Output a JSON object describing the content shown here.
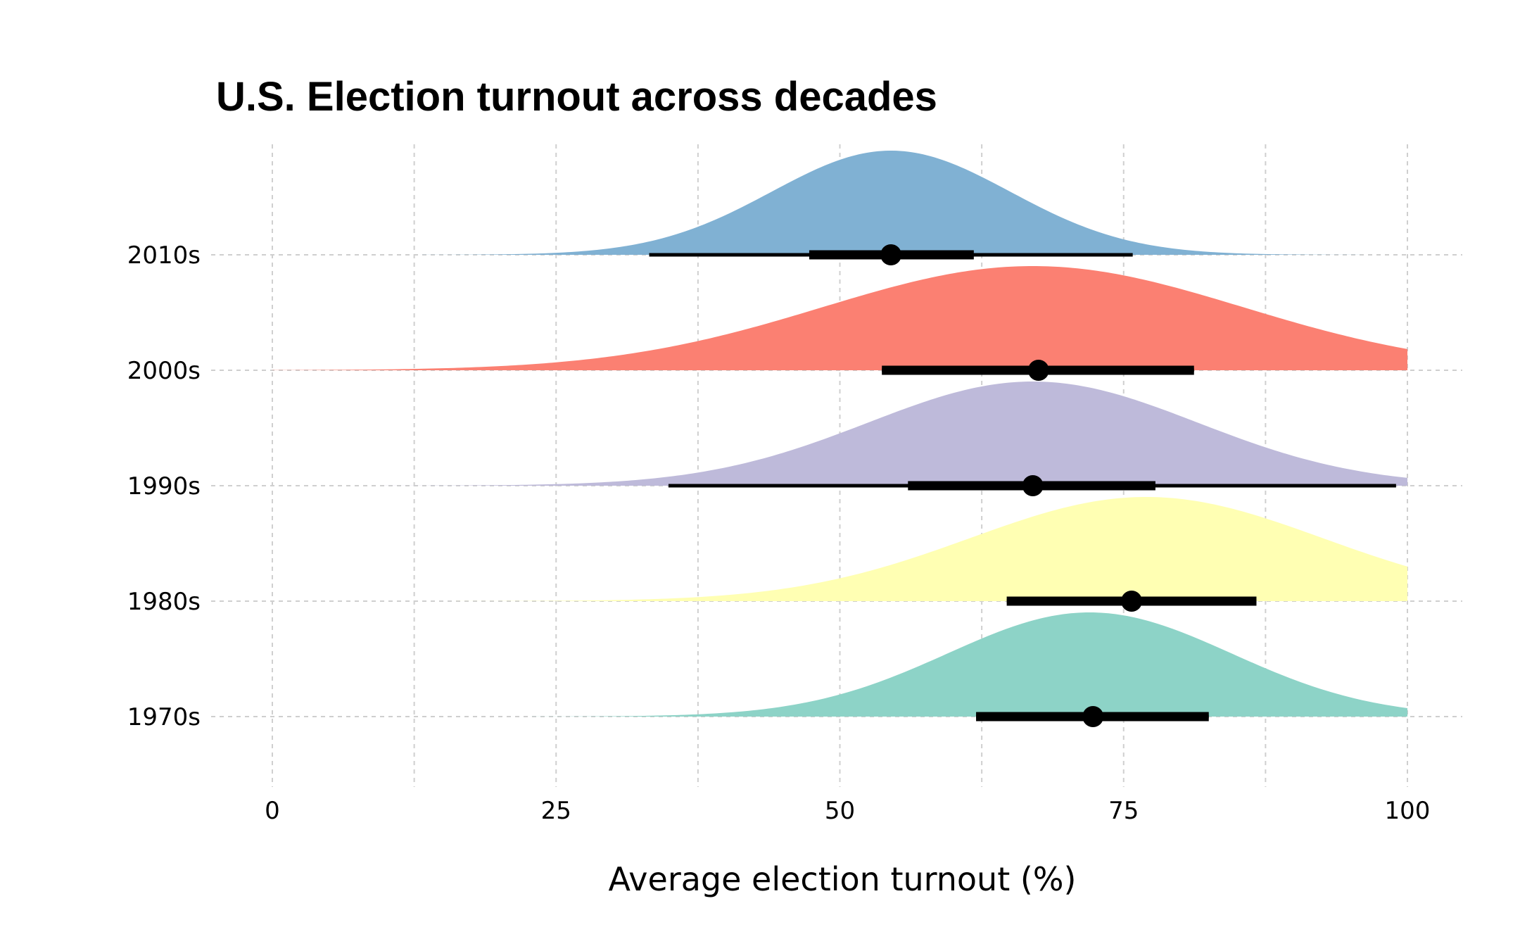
{
  "chart_data": {
    "type": "ridgeline",
    "title": "U.S. Election turnout across decades",
    "xlabel": "Average election turnout (%)",
    "ylabel": "",
    "xlim": [
      0,
      100
    ],
    "xticks": [
      0,
      25,
      50,
      75,
      100
    ],
    "grid": true,
    "series": [
      {
        "decade": "1970s",
        "color": "#8DD3C7",
        "density_mean": 72,
        "density_sd": 12.5,
        "point": 72.3,
        "interval_66": [
          62.0,
          82.5
        ],
        "interval_95": [
          62.0,
          82.5
        ]
      },
      {
        "decade": "1980s",
        "color": "#FFFFB3",
        "density_mean": 77,
        "density_sd": 15.5,
        "point": 75.7,
        "interval_66": [
          64.7,
          86.7
        ],
        "interval_95": [
          64.7,
          86.7
        ]
      },
      {
        "decade": "1990s",
        "color": "#BEBADA",
        "density_mean": 67,
        "density_sd": 14.5,
        "point": 67.0,
        "interval_66": [
          56.0,
          77.8
        ],
        "interval_95": [
          34.9,
          99.0
        ]
      },
      {
        "decade": "2000s",
        "color": "#FB8072",
        "density_mean": 67,
        "density_sd": 18.5,
        "point": 67.5,
        "interval_66": [
          53.7,
          81.2
        ],
        "interval_95": [
          53.7,
          81.2
        ]
      },
      {
        "decade": "2010s",
        "color": "#80B1D3",
        "density_mean": 54.5,
        "density_sd": 10.5,
        "point": 54.5,
        "interval_66": [
          47.3,
          61.8
        ],
        "interval_95": [
          33.2,
          75.8
        ]
      }
    ]
  }
}
